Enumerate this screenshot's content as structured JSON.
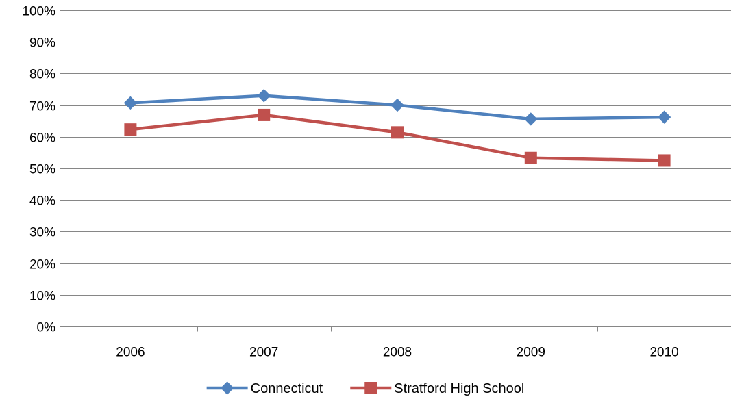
{
  "chart_data": {
    "type": "line",
    "title": "",
    "xlabel": "",
    "ylabel": "",
    "categories": [
      "2006",
      "2007",
      "2008",
      "2009",
      "2010"
    ],
    "ylim": [
      0,
      100
    ],
    "y_ticks": [
      0,
      10,
      20,
      30,
      40,
      50,
      60,
      70,
      80,
      90,
      100
    ],
    "y_tick_format": "percent",
    "grid": true,
    "legend_position": "bottom",
    "series": [
      {
        "name": "Connecticut",
        "values": [
          70.7,
          73.0,
          70.0,
          65.6,
          66.2
        ],
        "color": "#4F81BD",
        "marker": "diamond"
      },
      {
        "name": "Stratford High School",
        "values": [
          62.3,
          66.9,
          61.4,
          53.3,
          52.5
        ],
        "color": "#C0504D",
        "marker": "square"
      }
    ]
  }
}
